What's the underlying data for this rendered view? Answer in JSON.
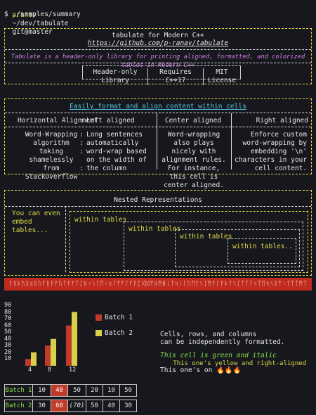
{
  "terminal": {
    "user": "pranav",
    "path": "~/dev/tabulate",
    "branch": "git@master",
    "command": "$ ./samples/summary"
  },
  "header_box": {
    "title": "tabulate for Modern C++",
    "url": "https://github.com/p-ranav/tabulate",
    "description": "Tabulate is a header-only library for printing aligned, formatted, and colorized tables in Modern C++",
    "badges": [
      "Header-only Library",
      "Requires C++17",
      "MIT License"
    ]
  },
  "format_box": {
    "title": "Easily format and align content within cells",
    "headers": [
      "Horizontal Alignment",
      "Left aligned",
      "Center aligned",
      "Right aligned"
    ],
    "row": [
      "Word-Wrapping algorithm taking shamelessly from StackOverflow",
      "Long sentences automatically word-wrap based on the width of the column",
      "Word-wrapping also plays nicely with alignment rules. For instance, this cell is center aligned.",
      "Enforce custom word-wrapping by embedding '\\n' characters in your cell content."
    ]
  },
  "nested_box": {
    "title": "Nested Representations",
    "left_text": "You can even embed tables...",
    "levels": [
      "within tables",
      "within tables",
      "within tables",
      "within tables.."
    ]
  },
  "runes": "ᚠᚱᚦᚢᚱᛟᚱᚢᚠᚱᚹᚠᚢᛏᚠᚠᛏᛇᚺᚲᛊᛚᛖᚲᛟᛚᛘᚡᛚᚠᚹᛈᚷᛞᛘᚺᛗᚻᛁᛏᛋᛁᛚᚢᛖᚠᛊᛇᛗᚠᛚᚹᚦᛏᛊᛇᛉᛏᛚᛃᛉᛖᛋᛊᚱᛘᚲᛏᛏᛏᛗᛏ",
  "chart_data": {
    "type": "bar",
    "categories": [
      "4",
      "8",
      "12"
    ],
    "series": [
      {
        "name": "Batch 1",
        "values": [
          10,
          30,
          60
        ],
        "color": "#c23a2a"
      },
      {
        "name": "Batch 2",
        "values": [
          20,
          40,
          80
        ],
        "color": "#d8d04a"
      }
    ],
    "yticks": [
      "90",
      "80",
      "70",
      "60",
      "50",
      "40",
      "30",
      "20",
      "10"
    ],
    "ylim": [
      0,
      90
    ],
    "legend": "right"
  },
  "side_text": {
    "line1": "Cells, rows, and columns",
    "line2": "can be independently formatted.",
    "green_italic": "This cell is green and italic",
    "yellow_right": "This one's yellow and right-aligned",
    "fire_prefix": "This one's on",
    "fire": "🔥🔥🔥"
  },
  "batch_table": {
    "rows": [
      {
        "label": "Batch 1",
        "cells": [
          "10",
          "40",
          "50",
          "20",
          "10",
          "50"
        ],
        "highlight": 1
      },
      {
        "label": "Batch 2",
        "cells": [
          "30",
          "60",
          "(70)",
          "50",
          "40",
          "30"
        ],
        "highlight": 1
      }
    ],
    "highlight_color": "#c23a2a",
    "label_color": "#89e04a"
  }
}
